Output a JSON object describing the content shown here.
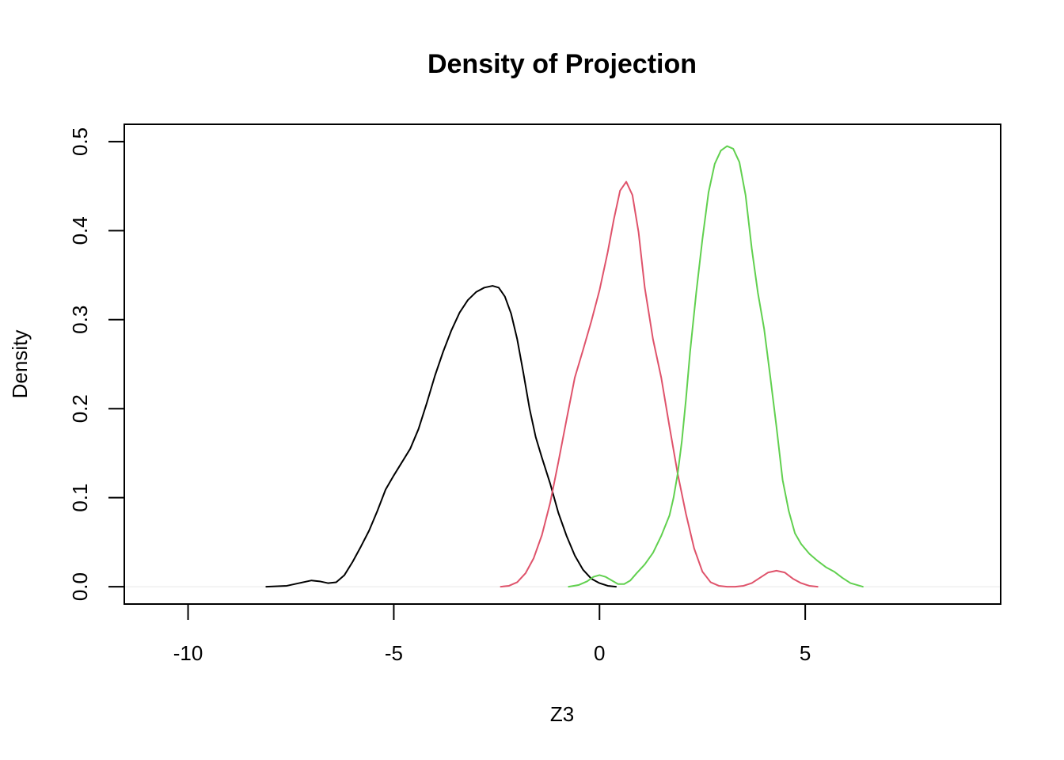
{
  "chart_data": {
    "type": "line",
    "title": "Density of Projection",
    "xlabel": "Z3",
    "ylabel": "Density",
    "xlim": [
      -11.55,
      9.75
    ],
    "ylim": [
      -0.0195,
      0.5195
    ],
    "xticks": [
      -10,
      -5,
      0,
      5
    ],
    "yticks": [
      0.0,
      0.1,
      0.2,
      0.3,
      0.4,
      0.5
    ],
    "xtick_labels": [
      "-10",
      "-5",
      "0",
      "5"
    ],
    "ytick_labels": [
      "0.0",
      "0.1",
      "0.2",
      "0.3",
      "0.4",
      "0.5"
    ],
    "grid": false,
    "zero_line": true,
    "series": [
      {
        "color": "#000000",
        "x": [
          -8.1,
          -7.6,
          -7.3,
          -7.0,
          -6.8,
          -6.6,
          -6.4,
          -6.2,
          -6.0,
          -5.8,
          -5.6,
          -5.4,
          -5.2,
          -5.0,
          -4.8,
          -4.6,
          -4.4,
          -4.2,
          -4.0,
          -3.8,
          -3.6,
          -3.4,
          -3.2,
          -3.0,
          -2.8,
          -2.6,
          -2.45,
          -2.3,
          -2.15,
          -2.0,
          -1.85,
          -1.7,
          -1.55,
          -1.4,
          -1.2,
          -1.0,
          -0.8,
          -0.6,
          -0.4,
          -0.2,
          0.0,
          0.2,
          0.4
        ],
        "y": [
          0.0,
          0.001,
          0.004,
          0.007,
          0.006,
          0.004,
          0.005,
          0.013,
          0.028,
          0.045,
          0.063,
          0.085,
          0.109,
          0.125,
          0.14,
          0.155,
          0.177,
          0.206,
          0.237,
          0.264,
          0.288,
          0.308,
          0.322,
          0.331,
          0.336,
          0.338,
          0.336,
          0.326,
          0.307,
          0.278,
          0.24,
          0.2,
          0.168,
          0.145,
          0.116,
          0.083,
          0.057,
          0.035,
          0.019,
          0.009,
          0.004,
          0.001,
          0.0
        ]
      },
      {
        "color": "#DF536B",
        "x": [
          -2.4,
          -2.2,
          -2.0,
          -1.8,
          -1.6,
          -1.4,
          -1.2,
          -1.0,
          -0.8,
          -0.6,
          -0.4,
          -0.2,
          0.0,
          0.2,
          0.35,
          0.5,
          0.65,
          0.8,
          0.95,
          1.1,
          1.3,
          1.5,
          1.7,
          1.9,
          2.1,
          2.3,
          2.5,
          2.7,
          2.9,
          3.1,
          3.3,
          3.5,
          3.7,
          3.9,
          4.1,
          4.3,
          4.5,
          4.7,
          4.9,
          5.1,
          5.3
        ],
        "y": [
          0.0,
          0.001,
          0.005,
          0.015,
          0.032,
          0.058,
          0.094,
          0.14,
          0.188,
          0.235,
          0.266,
          0.298,
          0.333,
          0.376,
          0.413,
          0.445,
          0.455,
          0.44,
          0.398,
          0.336,
          0.278,
          0.235,
          0.18,
          0.127,
          0.082,
          0.043,
          0.017,
          0.005,
          0.001,
          0.0,
          0.0,
          0.001,
          0.004,
          0.01,
          0.016,
          0.018,
          0.016,
          0.009,
          0.004,
          0.001,
          0.0
        ]
      },
      {
        "color": "#61D04F",
        "x": [
          -0.75,
          -0.5,
          -0.3,
          -0.15,
          0.0,
          0.15,
          0.3,
          0.45,
          0.6,
          0.75,
          0.9,
          1.1,
          1.3,
          1.5,
          1.7,
          1.8,
          1.9,
          2.0,
          2.1,
          2.2,
          2.35,
          2.5,
          2.65,
          2.8,
          2.95,
          3.1,
          3.25,
          3.4,
          3.55,
          3.7,
          3.85,
          4.0,
          4.15,
          4.3,
          4.45,
          4.6,
          4.75,
          4.9,
          5.1,
          5.3,
          5.5,
          5.7,
          5.9,
          6.1,
          6.4
        ],
        "y": [
          0.0,
          0.002,
          0.006,
          0.011,
          0.013,
          0.011,
          0.007,
          0.003,
          0.003,
          0.007,
          0.015,
          0.025,
          0.038,
          0.057,
          0.08,
          0.1,
          0.127,
          0.163,
          0.21,
          0.263,
          0.33,
          0.39,
          0.443,
          0.475,
          0.49,
          0.495,
          0.492,
          0.477,
          0.44,
          0.38,
          0.33,
          0.29,
          0.236,
          0.18,
          0.12,
          0.085,
          0.06,
          0.048,
          0.037,
          0.029,
          0.022,
          0.017,
          0.01,
          0.004,
          0.0
        ]
      }
    ]
  }
}
